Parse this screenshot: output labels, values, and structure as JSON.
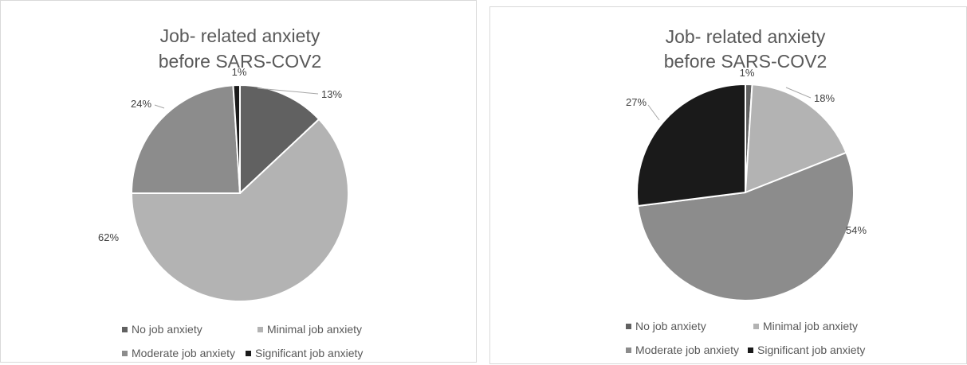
{
  "chart_data": [
    {
      "type": "pie",
      "title": [
        "Job- related anxiety",
        "before SARS-COV2"
      ],
      "categories": [
        "No job anxiety",
        "Minimal job anxiety",
        "Moderate job anxiety",
        "Significant job anxiety"
      ],
      "values": [
        13,
        62,
        24,
        1
      ],
      "data_labels": [
        "13%",
        "62%",
        "24%",
        "1%"
      ],
      "colors": [
        "#616161",
        "#b3b3b3",
        "#8c8c8c",
        "#1a1a1a"
      ],
      "legend_position": "bottom"
    },
    {
      "type": "pie",
      "title": [
        "Job- related anxiety",
        "before SARS-COV2"
      ],
      "categories": [
        "No job anxiety",
        "Minimal job anxiety",
        "Moderate job anxiety",
        "Significant job anxiety"
      ],
      "values": [
        1,
        18,
        54,
        27
      ],
      "data_labels": [
        "1%",
        "18%",
        "54%",
        "27%"
      ],
      "colors": [
        "#616161",
        "#b3b3b3",
        "#8c8c8c",
        "#1a1a1a"
      ],
      "legend_position": "bottom"
    }
  ]
}
